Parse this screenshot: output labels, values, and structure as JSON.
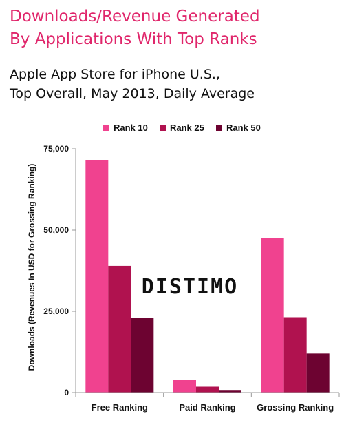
{
  "title_line1": "Downloads/Revenue Generated",
  "title_line2": "By Applications With Top Ranks",
  "subtitle_line1": "Apple App Store for iPhone U.S.,",
  "subtitle_line2": "Top Overall, May 2013, Daily Average",
  "logo_text": "DISTIMO",
  "chart_data": {
    "type": "bar",
    "categories": [
      "Free Ranking",
      "Paid Ranking",
      "Grossing Ranking"
    ],
    "series": [
      {
        "name": "Rank 10",
        "color": "#f0428f",
        "values": [
          71500,
          4000,
          47500
        ]
      },
      {
        "name": "Rank 25",
        "color": "#b0124f",
        "values": [
          39000,
          1800,
          23200
        ]
      },
      {
        "name": "Rank 50",
        "color": "#6d0331",
        "values": [
          23000,
          800,
          12000
        ]
      }
    ],
    "ylabel": "Downloads (Revenues In USD for Grossing Ranking)",
    "yticks": [
      0,
      25000,
      50000,
      75000
    ],
    "ytick_labels": [
      "0",
      "25,000",
      "50,000",
      "75,000"
    ],
    "ylim": [
      0,
      75000
    ],
    "grid": false,
    "legend_position": "top"
  }
}
